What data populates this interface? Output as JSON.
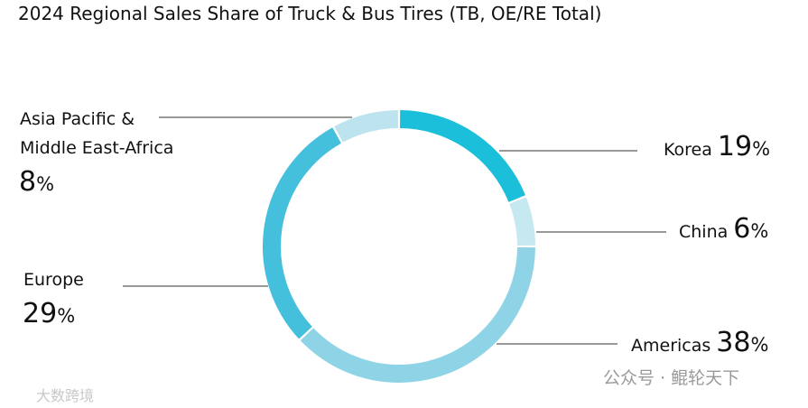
{
  "chart_data": {
    "type": "donut",
    "title": "2024 Regional Sales Share of Truck & Bus Tires (TB, OE/RE Total)",
    "categories": [
      "Korea",
      "China",
      "Americas",
      "Europe",
      "Asia Pacific & Middle East-Africa"
    ],
    "values": [
      19,
      6,
      38,
      29,
      8
    ],
    "value_labels": [
      "19%",
      "6%",
      "38%",
      "29%",
      "8%"
    ],
    "colors": [
      "#1bbfd9",
      "#c6e8f0",
      "#8fd4e6",
      "#45c0dc",
      "#bde4ee"
    ]
  },
  "watermarks": [
    "公众号 · 鲲轮天下",
    "大数跨境"
  ]
}
